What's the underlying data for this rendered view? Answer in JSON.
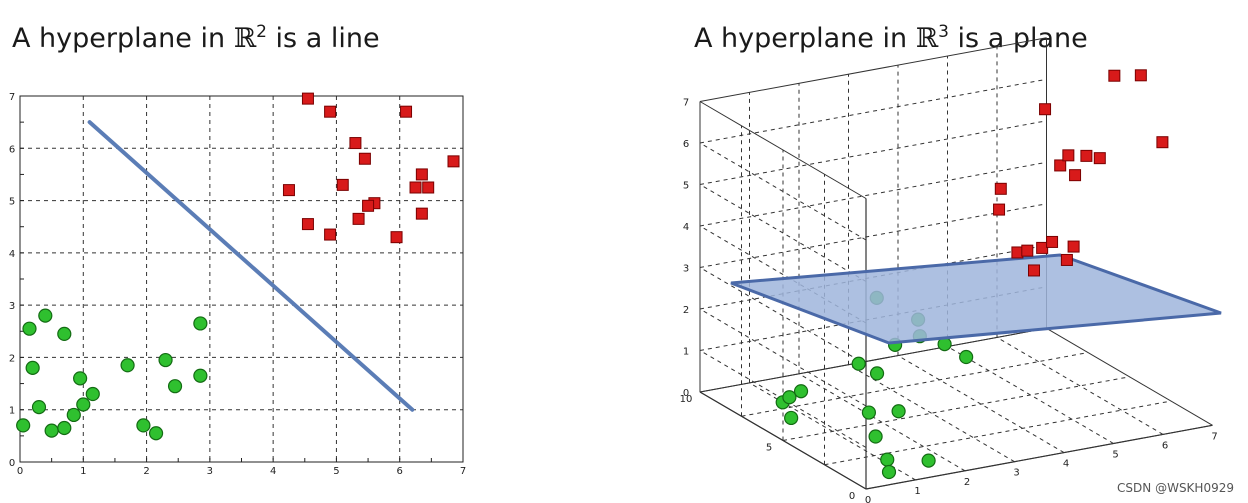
{
  "titles": {
    "left": {
      "pre": "A hyperplane in ",
      "symbol": "ℝ",
      "exp": "2",
      "post": " is a line"
    },
    "right": {
      "pre": "A hyperplane in ",
      "symbol": "ℝ",
      "exp": "3",
      "post": " is a plane"
    }
  },
  "watermark": "CSDN @WSKH0929",
  "colors": {
    "line": "#5b7db6",
    "plane_fill": "#9fb5dc",
    "plane_edge": "#4a69a8",
    "square": "#d81a1a",
    "circle": "#2fc02f",
    "grid": "#333333"
  },
  "chart_data": [
    {
      "type": "scatter",
      "title": "A hyperplane in ℝ2 is a line",
      "xlabel": "",
      "ylabel": "",
      "xlim": [
        0,
        7
      ],
      "ylim": [
        0,
        7
      ],
      "xticks": [
        "0",
        "1",
        "2",
        "3",
        "4",
        "5",
        "6",
        "7"
      ],
      "yticks": [
        "0",
        "1",
        "2",
        "3",
        "4",
        "5",
        "6",
        "7"
      ],
      "grid": true,
      "line": {
        "x": [
          1.1,
          6.2
        ],
        "y": [
          6.5,
          1.0
        ]
      },
      "series": [
        {
          "marker": "square",
          "color": "#d81a1a",
          "points": [
            [
              4.55,
              6.95
            ],
            [
              4.9,
              6.7
            ],
            [
              6.1,
              6.7
            ],
            [
              5.3,
              6.1
            ],
            [
              5.45,
              5.8
            ],
            [
              6.85,
              5.75
            ],
            [
              6.35,
              5.5
            ],
            [
              6.25,
              5.25
            ],
            [
              6.45,
              5.25
            ],
            [
              5.1,
              5.3
            ],
            [
              4.25,
              5.2
            ],
            [
              5.6,
              4.95
            ],
            [
              5.5,
              4.9
            ],
            [
              6.35,
              4.75
            ],
            [
              5.35,
              4.65
            ],
            [
              4.55,
              4.55
            ],
            [
              4.9,
              4.35
            ],
            [
              5.95,
              4.3
            ]
          ]
        },
        {
          "marker": "circle",
          "color": "#2fc02f",
          "points": [
            [
              0.4,
              2.8
            ],
            [
              0.15,
              2.55
            ],
            [
              0.7,
              2.45
            ],
            [
              2.85,
              2.65
            ],
            [
              1.7,
              1.85
            ],
            [
              2.3,
              1.95
            ],
            [
              0.2,
              1.8
            ],
            [
              0.95,
              1.6
            ],
            [
              2.85,
              1.65
            ],
            [
              2.45,
              1.45
            ],
            [
              1.15,
              1.3
            ],
            [
              0.3,
              1.05
            ],
            [
              1.0,
              1.1
            ],
            [
              0.85,
              0.9
            ],
            [
              0.05,
              0.7
            ],
            [
              0.5,
              0.6
            ],
            [
              0.7,
              0.65
            ],
            [
              1.95,
              0.7
            ],
            [
              2.15,
              0.55
            ]
          ]
        }
      ]
    },
    {
      "type": "scatter3d",
      "title": "A hyperplane in ℝ3 is a plane",
      "xlim": [
        0,
        7
      ],
      "ylim": [
        0,
        10
      ],
      "zlim": [
        0,
        7
      ],
      "xticks": [
        "0",
        "1",
        "2",
        "3",
        "4",
        "5",
        "6",
        "7"
      ],
      "yticks": [
        "0",
        "5",
        "10"
      ],
      "zticks": [
        "0",
        "1",
        "2",
        "3",
        "4",
        "5",
        "6",
        "7"
      ],
      "grid": true,
      "plane": "z ≈ 2.5"
    }
  ]
}
